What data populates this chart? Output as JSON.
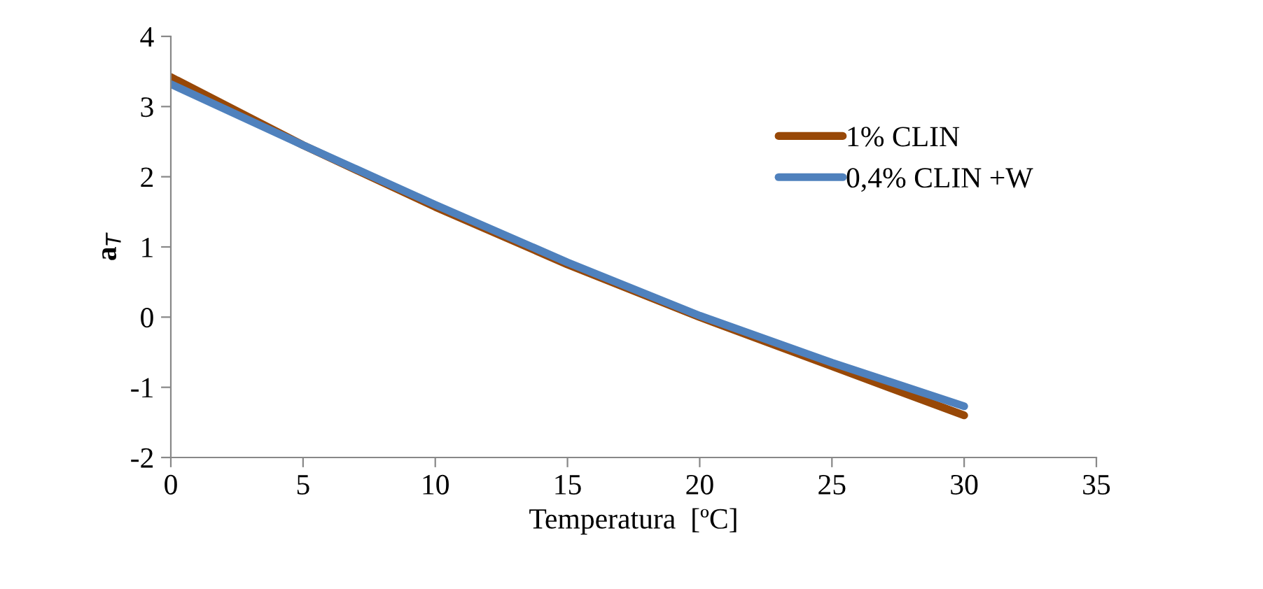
{
  "chart_data": {
    "type": "line",
    "xlabel": "Temperatura  [ºC]",
    "ylabel": "a$_{T}$",
    "x": [
      0,
      5,
      10,
      15,
      20,
      25,
      30
    ],
    "series": [
      {
        "name": "1% CLIN",
        "color": "#984807",
        "values": [
          3.42,
          2.45,
          1.57,
          0.75,
          0.0,
          -0.7,
          -1.4
        ]
      },
      {
        "name": "0,4% CLIN +W",
        "color": "#4f81bd",
        "values": [
          3.32,
          2.45,
          1.6,
          0.78,
          0.02,
          -0.65,
          -1.27
        ]
      }
    ],
    "xlim": [
      0,
      35
    ],
    "xticks": [
      0,
      5,
      10,
      15,
      20,
      25,
      30,
      35
    ],
    "ylim": [
      -2,
      4
    ],
    "yticks": [
      -2,
      -1,
      0,
      1,
      2,
      3,
      4
    ],
    "grid": false,
    "legend": "top right",
    "marker": "none",
    "line_style": "solid"
  }
}
